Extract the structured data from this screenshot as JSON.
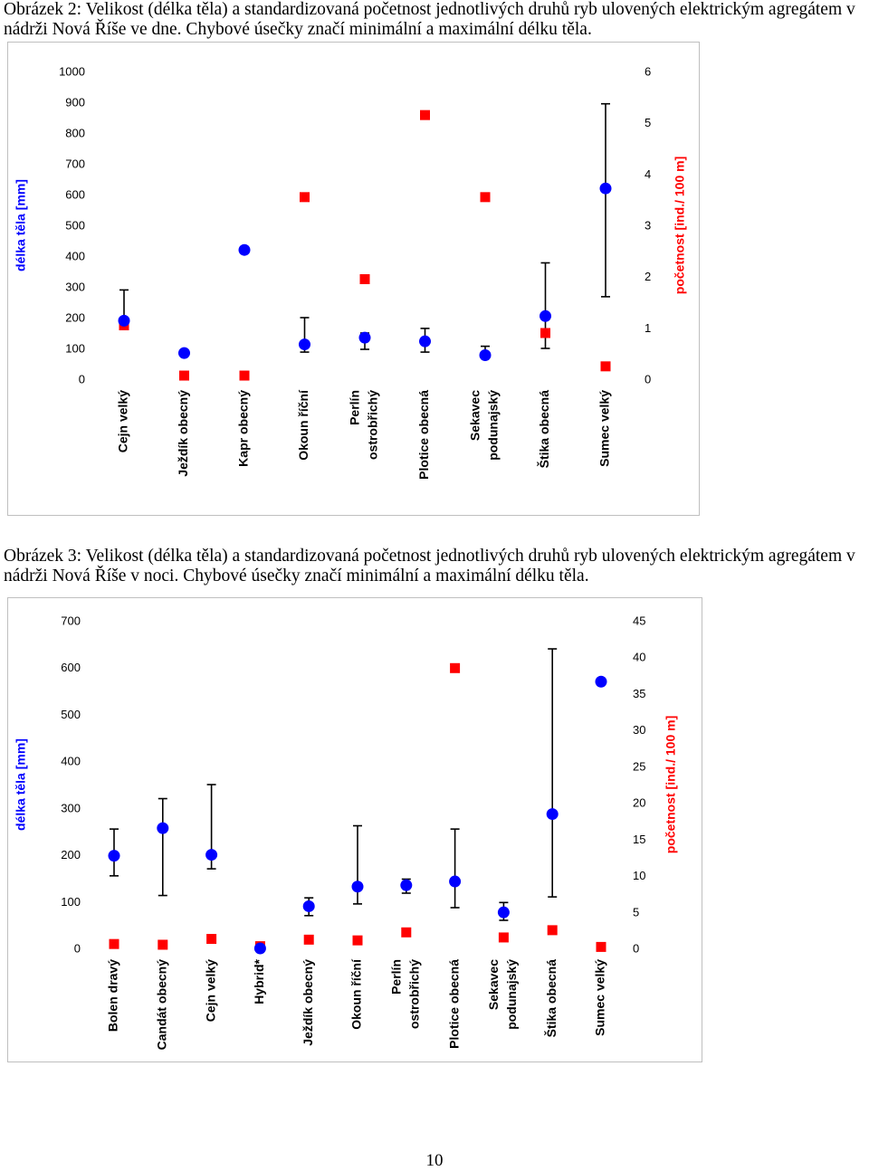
{
  "captions": {
    "fig2": "Obrázek 2: Velikost (délka těla) a standardizovaná početnost jednotlivých druhů ryb ulovených elektrickým agregátem v nádrži Nová Říše ve dne. Chybové úsečky značí minimální a maximální délku těla.",
    "fig3": "Obrázek 3: Velikost (délka těla) a standardizovaná početnost jednotlivých druhů ryb ulovených elektrickým agregátem v nádrži Nová Říše v noci. Chybové úsečky značí minimální a maximální délku těla."
  },
  "page_number": "10",
  "colors": {
    "length_marker": "#0000ff",
    "abundance_marker": "#ff0000",
    "error_bar": "#000000"
  },
  "chart_data": [
    {
      "type": "scatter",
      "title": "Obrázek 2",
      "ylabel": "délka těla [mm]",
      "y2label": "početnost [ind./ 100 m]",
      "ylim": [
        0,
        1000
      ],
      "yticks": [
        "0",
        "100",
        "200",
        "300",
        "400",
        "500",
        "600",
        "700",
        "800",
        "900",
        "1000"
      ],
      "y2lim": [
        0,
        6
      ],
      "y2ticks": [
        "0",
        "1",
        "2",
        "3",
        "4",
        "5",
        "6"
      ],
      "categories": [
        [
          "Cejn velký"
        ],
        [
          "Ježdík obecný"
        ],
        [
          "Kapr obecný"
        ],
        [
          "Okoun říční"
        ],
        [
          "Perlín",
          "ostrobřichý"
        ],
        [
          "Plotice obecná"
        ],
        [
          "Sekavec",
          "podunajský"
        ],
        [
          "Štika obecná"
        ],
        [
          "Sumec velký"
        ]
      ],
      "series": [
        {
          "name": "délka těla",
          "axis": "left",
          "marker": "circle",
          "values": [
            190,
            85,
            420,
            113,
            135,
            123,
            78,
            205,
            620
          ],
          "min": [
            168,
            null,
            null,
            88,
            97,
            88,
            70,
            100,
            268
          ],
          "max": [
            290,
            null,
            null,
            200,
            150,
            165,
            107,
            378,
            895
          ]
        },
        {
          "name": "početnost",
          "axis": "right",
          "marker": "square",
          "values": [
            1.05,
            0.07,
            0.07,
            3.55,
            1.95,
            5.15,
            3.55,
            0.9,
            0.25
          ]
        }
      ]
    },
    {
      "type": "scatter",
      "title": "Obrázek 3",
      "ylabel": "délka těla [mm]",
      "y2label": "početnost [ind./ 100 m]",
      "ylim": [
        0,
        700
      ],
      "yticks": [
        "0",
        "100",
        "200",
        "300",
        "400",
        "500",
        "600",
        "700"
      ],
      "y2lim": [
        0,
        45
      ],
      "y2ticks": [
        "0",
        "5",
        "10",
        "15",
        "20",
        "25",
        "30",
        "35",
        "40",
        "45"
      ],
      "categories": [
        [
          "Bolen dravý"
        ],
        [
          "Candát obecný"
        ],
        [
          "Cejn velký"
        ],
        [
          "Hybrid*"
        ],
        [
          "Ježdík obecný"
        ],
        [
          "Okoun říční"
        ],
        [
          "Perlín",
          "ostrobřichý"
        ],
        [
          "Plotice obecná"
        ],
        [
          "Sekavec",
          "podunajský"
        ],
        [
          "Štika obecná"
        ],
        [
          "Sumec velký"
        ]
      ],
      "series": [
        {
          "name": "délka těla",
          "axis": "left",
          "marker": "circle",
          "values": [
            198,
            257,
            200,
            0,
            90,
            132,
            135,
            143,
            77,
            287,
            570
          ],
          "min": [
            155,
            113,
            170,
            null,
            70,
            95,
            118,
            87,
            60,
            110,
            null
          ],
          "max": [
            255,
            320,
            350,
            null,
            108,
            262,
            148,
            255,
            98,
            640,
            null
          ]
        },
        {
          "name": "početnost",
          "axis": "right",
          "marker": "square",
          "values": [
            0.6,
            0.5,
            1.3,
            0.3,
            1.2,
            1.1,
            2.2,
            38.5,
            1.5,
            2.5,
            0.2
          ]
        }
      ]
    }
  ]
}
